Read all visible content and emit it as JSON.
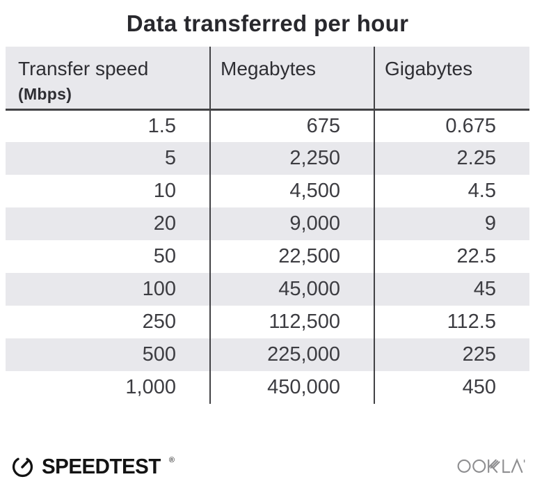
{
  "title": "Data transferred per hour",
  "chart_data": {
    "type": "table",
    "title": "Data transferred per hour",
    "columns": [
      "Transfer speed (Mbps)",
      "Megabytes",
      "Gigabytes"
    ],
    "rows": [
      [
        "1.5",
        "675",
        "0.675"
      ],
      [
        "5",
        "2,250",
        "2.25"
      ],
      [
        "10",
        "4,500",
        "4.5"
      ],
      [
        "20",
        "9,000",
        "9"
      ],
      [
        "50",
        "22,500",
        "22.5"
      ],
      [
        "100",
        "45,000",
        "45"
      ],
      [
        "250",
        "112,500",
        "112.5"
      ],
      [
        "500",
        "225,000",
        "225"
      ],
      [
        "1,000",
        "450,000",
        "450"
      ]
    ],
    "layout_hints": {
      "striped_rows": true,
      "stripe_on_even_data_rows": true,
      "value_alignment": "right"
    }
  },
  "table": {
    "header": {
      "col1_line1": "Transfer speed",
      "col1_line2": "(Mbps)",
      "col2": "Megabytes",
      "col3": "Gigabytes"
    }
  },
  "footer": {
    "speedtest_label": "SPEEDTEST",
    "registered_mark": "®",
    "ookla_label": "OOKLA",
    "icons": {
      "speedtest_gauge": "gauge-icon",
      "ookla_wordmark": "ookla-wordmark"
    }
  },
  "colors": {
    "background": "#ffffff",
    "stripe_and_header_bg": "#e8e8ec",
    "divider": "#414144",
    "title_text": "#28282d",
    "body_text": "#3c3c41",
    "speedtest_black": "#131313",
    "ookla_gray": "#8e8e90"
  }
}
